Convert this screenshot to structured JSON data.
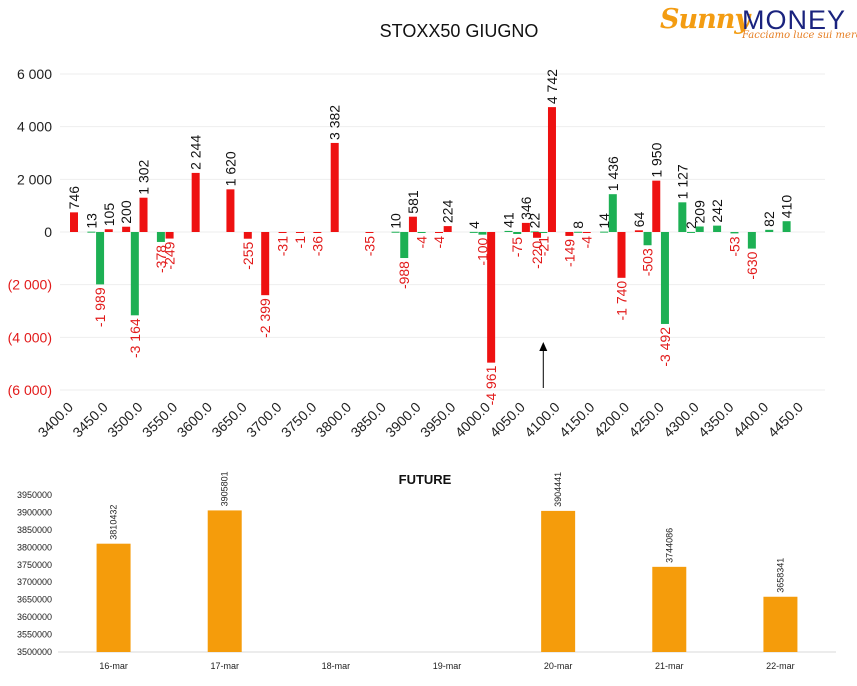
{
  "logo": {
    "brand_part1": "Sunny",
    "brand_part2": "MONEY",
    "tagline": "Facciamo luce sui mercati"
  },
  "colors": {
    "positive": "#ee1111",
    "negative": "#1db054",
    "future_bar": "#f59c0b",
    "axis_text": "#222222",
    "grid": "#eeeeee"
  },
  "chart_data": [
    {
      "type": "bar",
      "title": "STOXX50 GIUGNO",
      "categories": [
        "3400.0",
        "3450.0",
        "3500.0",
        "3550.0",
        "3600.0",
        "3650.0",
        "3700.0",
        "3750.0",
        "3800.0",
        "3850.0",
        "3900.0",
        "3950.0",
        "4000.0",
        "4050.0",
        "4100.0",
        "4150.0",
        "4200.0",
        "4250.0",
        "4300.0",
        "4350.0",
        "4400.0",
        "4450.0"
      ],
      "bars": [
        {
          "x": 3400.0,
          "value": 746,
          "color": "red",
          "label": "746"
        },
        {
          "x": 3425.0,
          "value": 13,
          "color": "green",
          "label": "13"
        },
        {
          "x": 3437.5,
          "value": -1989,
          "color": "green",
          "label": "-1 989"
        },
        {
          "x": 3450.0,
          "value": 105,
          "color": "red",
          "label": "105"
        },
        {
          "x": 3475.0,
          "value": 200,
          "color": "red",
          "label": "200"
        },
        {
          "x": 3487.5,
          "value": -3164,
          "color": "green",
          "label": "-3 164"
        },
        {
          "x": 3500.0,
          "value": 1302,
          "color": "red",
          "label": "1 302"
        },
        {
          "x": 3525.0,
          "value": -378,
          "color": "green",
          "label": "-378"
        },
        {
          "x": 3537.5,
          "value": -249,
          "color": "red",
          "label": "-249"
        },
        {
          "x": 3575.0,
          "value": 2244,
          "color": "red",
          "label": "2 244"
        },
        {
          "x": 3625.0,
          "value": 1620,
          "color": "red",
          "label": "1 620"
        },
        {
          "x": 3650.0,
          "value": -255,
          "color": "red",
          "label": "-255"
        },
        {
          "x": 3675.0,
          "value": -2399,
          "color": "red",
          "label": "-2 399"
        },
        {
          "x": 3700.0,
          "value": -31,
          "color": "red",
          "label": "-31"
        },
        {
          "x": 3725.0,
          "value": -1,
          "color": "red",
          "label": "-1"
        },
        {
          "x": 3750.0,
          "value": -36,
          "color": "red",
          "label": "-36"
        },
        {
          "x": 3775.0,
          "value": 3382,
          "color": "red",
          "label": "3 382"
        },
        {
          "x": 3825.0,
          "value": -35,
          "color": "red",
          "label": "-35"
        },
        {
          "x": 3862.5,
          "value": 10,
          "color": "green",
          "label": "10"
        },
        {
          "x": 3875.0,
          "value": -988,
          "color": "green",
          "label": "-988"
        },
        {
          "x": 3887.5,
          "value": 581,
          "color": "red",
          "label": "581"
        },
        {
          "x": 3900.0,
          "value": -4,
          "color": "green",
          "label": "-4"
        },
        {
          "x": 3925.0,
          "value": -4,
          "color": "red",
          "label": "-4"
        },
        {
          "x": 3937.5,
          "value": 224,
          "color": "red",
          "label": "224"
        },
        {
          "x": 3975.0,
          "value": 4,
          "color": "green",
          "label": "4"
        },
        {
          "x": 3987.5,
          "value": -100,
          "color": "green",
          "label": "-100"
        },
        {
          "x": 4000.0,
          "value": -4961,
          "color": "red",
          "label": "-4 961"
        },
        {
          "x": 4025.0,
          "value": 41,
          "color": "green",
          "label": "41"
        },
        {
          "x": 4037.5,
          "value": -75,
          "color": "green",
          "label": "-75"
        },
        {
          "x": 4050.0,
          "value": 346,
          "color": "red",
          "label": "346"
        },
        {
          "x": 4062.5,
          "value": 22,
          "color": "green",
          "label": "22"
        },
        {
          "x": 4066.0,
          "value": -220,
          "color": "red",
          "label": "-220"
        },
        {
          "x": 4075.0,
          "value": -21,
          "color": "green",
          "label": "-21"
        },
        {
          "x": 4087.5,
          "value": 4742,
          "color": "red",
          "label": "4 742"
        },
        {
          "x": 4112.5,
          "value": -149,
          "color": "red",
          "label": "-149"
        },
        {
          "x": 4125.0,
          "value": 8,
          "color": "green",
          "label": "8"
        },
        {
          "x": 4137.5,
          "value": -4,
          "color": "red",
          "label": "-4"
        },
        {
          "x": 4162.5,
          "value": 14,
          "color": "green",
          "label": "14"
        },
        {
          "x": 4175.0,
          "value": 1436,
          "color": "green",
          "label": "1 436"
        },
        {
          "x": 4187.5,
          "value": -1740,
          "color": "red",
          "label": "-1 740"
        },
        {
          "x": 4212.5,
          "value": 64,
          "color": "red",
          "label": "64"
        },
        {
          "x": 4225.0,
          "value": -503,
          "color": "green",
          "label": "-503"
        },
        {
          "x": 4237.5,
          "value": 1950,
          "color": "red",
          "label": "1 950"
        },
        {
          "x": 4250.0,
          "value": -3492,
          "color": "green",
          "label": "-3 492"
        },
        {
          "x": 4275.0,
          "value": 1127,
          "color": "green",
          "label": "1 127"
        },
        {
          "x": 4287.5,
          "value": 2,
          "color": "green",
          "label": "2"
        },
        {
          "x": 4300.0,
          "value": 209,
          "color": "green",
          "label": "209"
        },
        {
          "x": 4325.0,
          "value": 242,
          "color": "green",
          "label": "242"
        },
        {
          "x": 4350.0,
          "value": -53,
          "color": "green",
          "label": "-53"
        },
        {
          "x": 4375.0,
          "value": -630,
          "color": "green",
          "label": "-630"
        },
        {
          "x": 4400.0,
          "value": 82,
          "color": "green",
          "label": "82"
        },
        {
          "x": 4425.0,
          "value": 410,
          "color": "green",
          "label": "410"
        }
      ],
      "xlim": [
        3400.0,
        4450.0
      ],
      "ylim": [
        -6000,
        6000
      ],
      "yticks": [
        6000,
        4000,
        2000,
        0,
        -2000,
        -4000,
        -6000
      ],
      "ytick_labels": [
        "6 000",
        "4 000",
        "2 000",
        "0",
        "(2 000)",
        "(4 000)",
        "(6 000)"
      ],
      "marker_arrow_x": 4075.0,
      "grid": true
    },
    {
      "type": "bar",
      "title": "FUTURE",
      "categories": [
        "16-mar",
        "17-mar",
        "18-mar",
        "19-mar",
        "20-mar",
        "21-mar",
        "22-mar"
      ],
      "values": [
        3810432,
        3905801,
        null,
        null,
        3904441,
        3744086,
        3658341
      ],
      "labels": [
        "3810432",
        "3905801",
        "",
        "",
        "3904441",
        "3744086",
        "3658341"
      ],
      "ylim": [
        3500000,
        3950000
      ],
      "yticks": [
        "3500000",
        "3550000",
        "3600000",
        "3650000",
        "3700000",
        "3750000",
        "3800000",
        "3850000",
        "3900000",
        "3950000"
      ],
      "grid": false
    }
  ]
}
